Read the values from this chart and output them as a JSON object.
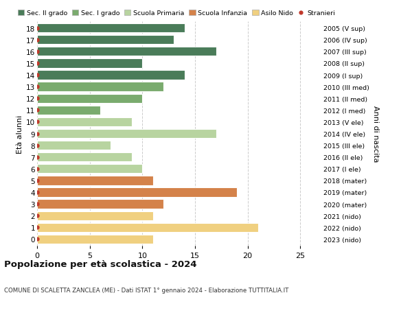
{
  "ages": [
    18,
    17,
    16,
    15,
    14,
    13,
    12,
    11,
    10,
    9,
    8,
    7,
    6,
    5,
    4,
    3,
    2,
    1,
    0
  ],
  "values": [
    14,
    13,
    17,
    10,
    14,
    12,
    10,
    6,
    9,
    17,
    7,
    9,
    10,
    11,
    19,
    12,
    11,
    21,
    11
  ],
  "right_labels": [
    "2005 (V sup)",
    "2006 (IV sup)",
    "2007 (III sup)",
    "2008 (II sup)",
    "2009 (I sup)",
    "2010 (III med)",
    "2011 (II med)",
    "2012 (I med)",
    "2013 (V ele)",
    "2014 (IV ele)",
    "2015 (III ele)",
    "2016 (II ele)",
    "2017 (I ele)",
    "2018 (mater)",
    "2019 (mater)",
    "2020 (mater)",
    "2021 (nido)",
    "2022 (nido)",
    "2023 (nido)"
  ],
  "bar_colors": [
    "#4a7c59",
    "#4a7c59",
    "#4a7c59",
    "#4a7c59",
    "#4a7c59",
    "#7aab6e",
    "#7aab6e",
    "#7aab6e",
    "#b8d4a0",
    "#b8d4a0",
    "#b8d4a0",
    "#b8d4a0",
    "#b8d4a0",
    "#d4824a",
    "#d4824a",
    "#d4824a",
    "#f0d080",
    "#f0d080",
    "#f0d080"
  ],
  "stranieri_color": "#c0392b",
  "legend_labels": [
    "Sec. II grado",
    "Sec. I grado",
    "Scuola Primaria",
    "Scuola Infanzia",
    "Asilo Nido",
    "Stranieri"
  ],
  "legend_colors": [
    "#4a7c59",
    "#7aab6e",
    "#b8d4a0",
    "#d4824a",
    "#f0d080",
    "#c0392b"
  ],
  "title": "Popolazione per età scolastica - 2024",
  "subtitle": "COMUNE DI SCALETTA ZANCLEA (ME) - Dati ISTAT 1° gennaio 2024 - Elaborazione TUTTITALIA.IT",
  "ylabel": "Età alunni",
  "right_ylabel": "Anni di nascita",
  "xlim": [
    0,
    27
  ],
  "xticks": [
    0,
    5,
    10,
    15,
    20,
    25
  ],
  "bg_color": "#ffffff",
  "grid_color": "#cccccc",
  "bar_edge_color": "#ffffff",
  "bar_height": 0.78
}
